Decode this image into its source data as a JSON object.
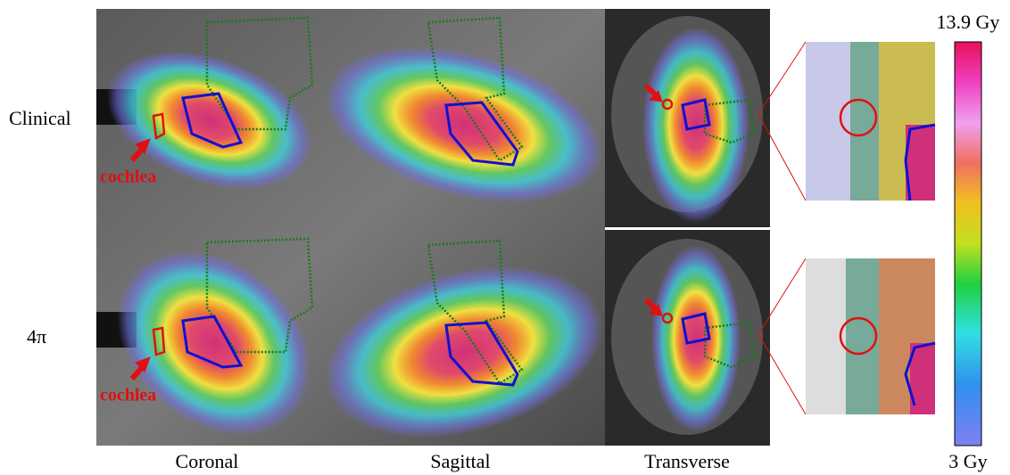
{
  "row_labels": [
    "Clinical",
    "4π"
  ],
  "column_labels": [
    "Coronal",
    "Sagittal",
    "Transverse"
  ],
  "annotations": [
    "cochlea",
    "cochlea"
  ],
  "colorbar": {
    "max_label": "13.9 Gy",
    "min_label": "3 Gy"
  }
}
